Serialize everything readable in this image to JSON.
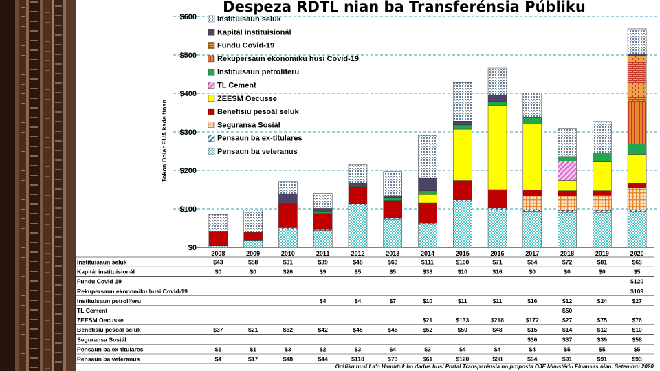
{
  "chart_data": {
    "type": "bar",
    "stacked": true,
    "title": "Despeza RDTL nian ba Transferénsia Públiku",
    "ylabel": "Tokon Dolar EUA kada tinan",
    "ylim": [
      0,
      600
    ],
    "yticks": [
      0,
      100,
      200,
      300,
      400,
      500,
      600
    ],
    "ytick_labels": [
      "$0",
      "$100",
      "$200",
      "$300",
      "$400",
      "$500",
      "$600"
    ],
    "categories": [
      "2008",
      "2009",
      "2010",
      "2011",
      "2012",
      "2013",
      "2014",
      "2015",
      "2016",
      "2017",
      "2018",
      "2019",
      "2020"
    ],
    "series": [
      {
        "key": "veteranus",
        "name": "Pensaun ba veteranus",
        "color": "#58c8c8",
        "pattern": "checker",
        "values": [
          4,
          17,
          48,
          44,
          110,
          73,
          61,
          120,
          98,
          94,
          91,
          91,
          93
        ],
        "labels": [
          "$4",
          "$17",
          "$48",
          "$44",
          "$110",
          "$73",
          "$61",
          "$120",
          "$98",
          "$94",
          "$91",
          "$91",
          "$93"
        ]
      },
      {
        "key": "extitulares",
        "name": "Pensaun ba ex-titulares",
        "color": "#2a6fb5",
        "pattern": "diag",
        "values": [
          1,
          1,
          3,
          2,
          3,
          4,
          3,
          4,
          4,
          4,
          5,
          5,
          5
        ],
        "labels": [
          "$1",
          "$1",
          "$3",
          "$2",
          "$3",
          "$4",
          "$3",
          "$4",
          "$4",
          "$4",
          "$5",
          "$5",
          "$5"
        ]
      },
      {
        "key": "seguransa",
        "name": "Seguransa Sosiál",
        "color": "#e8862a",
        "pattern": "grid",
        "values": [
          0,
          0,
          0,
          0,
          0,
          0,
          0,
          0,
          0,
          36,
          37,
          39,
          58
        ],
        "labels": [
          "",
          "",
          "",
          "",
          "",
          "",
          "",
          "",
          "",
          "$36",
          "$37",
          "$39",
          "$58"
        ]
      },
      {
        "key": "beneficiu",
        "name": "Benefísiu pesoál seluk",
        "color": "#c00000",
        "pattern": "solid",
        "values": [
          37,
          21,
          62,
          42,
          45,
          45,
          52,
          50,
          48,
          15,
          14,
          12,
          10
        ],
        "labels": [
          "$37",
          "$21",
          "$62",
          "$42",
          "$45",
          "$45",
          "$52",
          "$50",
          "$48",
          "$15",
          "$14",
          "$12",
          "$10"
        ]
      },
      {
        "key": "zeesm",
        "name": "ZEESM Oecusse",
        "color": "#ffff00",
        "pattern": "solid",
        "values": [
          0,
          0,
          0,
          0,
          0,
          0,
          21,
          133,
          218,
          172,
          27,
          75,
          76
        ],
        "labels": [
          "",
          "",
          "",
          "",
          "",
          "",
          "$21",
          "$133",
          "$218",
          "$172",
          "$27",
          "$75",
          "$76"
        ]
      },
      {
        "key": "tlcement",
        "name": "TL Cement",
        "color": "#e37ad6",
        "pattern": "diagpink",
        "values": [
          0,
          0,
          0,
          0,
          0,
          0,
          0,
          0,
          0,
          0,
          50,
          0,
          0
        ],
        "labels": [
          "",
          "",
          "",
          "",
          "",
          "",
          "",
          "",
          "",
          "",
          "$50",
          "",
          ""
        ]
      },
      {
        "key": "petroliferu",
        "name": "Instituisaun petrolíferu",
        "color": "#1fa850",
        "pattern": "solid",
        "values": [
          0,
          0,
          0,
          4,
          4,
          7,
          10,
          11,
          11,
          16,
          12,
          24,
          27
        ],
        "labels": [
          "",
          "",
          "",
          "$4",
          "$4",
          "$7",
          "$10",
          "$11",
          "$11",
          "$16",
          "$12",
          "$24",
          "$27"
        ]
      },
      {
        "key": "rekuperasaun",
        "name": "Rekupersaun ekonomiku husi Covid-19",
        "color": "#e8862a",
        "pattern": "vstripe",
        "values": [
          0,
          0,
          0,
          0,
          0,
          0,
          0,
          0,
          0,
          0,
          0,
          0,
          109
        ],
        "labels": [
          "",
          "",
          "",
          "",
          "",
          "",
          "",
          "",
          "",
          "",
          "",
          "",
          "$109"
        ]
      },
      {
        "key": "fundu",
        "name": "Fundu Covid-19",
        "color": "#e8862a",
        "pattern": "brick",
        "values": [
          0,
          0,
          0,
          0,
          0,
          0,
          0,
          0,
          0,
          0,
          0,
          0,
          120
        ],
        "labels": [
          "",
          "",
          "",
          "",
          "",
          "",
          "",
          "",
          "",
          "",
          "",
          "",
          "$120"
        ]
      },
      {
        "key": "kapital",
        "name": "Kapitál instituisionál",
        "color": "#4b4466",
        "pattern": "solid",
        "values": [
          0,
          0,
          26,
          9,
          5,
          5,
          33,
          10,
          16,
          0,
          0,
          0,
          5
        ],
        "labels": [
          "$0",
          "$0",
          "$26",
          "$9",
          "$5",
          "$5",
          "$33",
          "$10",
          "$16",
          "$0",
          "$0",
          "$0",
          "$5"
        ]
      },
      {
        "key": "seluk",
        "name": "Instituisaun seluk",
        "color": "#8fa4b8",
        "pattern": "dots",
        "values": [
          43,
          58,
          31,
          39,
          48,
          63,
          111,
          100,
          71,
          64,
          72,
          81,
          65
        ],
        "labels": [
          "$43",
          "$58",
          "$31",
          "$39",
          "$48",
          "$63",
          "$111",
          "$100",
          "$71",
          "$64",
          "$72",
          "$81",
          "$65"
        ]
      }
    ],
    "legend_order": [
      "seluk",
      "kapital",
      "fundu",
      "rekuperasaun",
      "petroliferu",
      "tlcement",
      "zeesm",
      "beneficiu",
      "seguransa",
      "extitulares",
      "veteranus"
    ],
    "table_row_order": [
      {
        "key": "seluk",
        "label": "Instituisaun seluk"
      },
      {
        "key": "kapital",
        "label": "Kapitál instituisionál"
      },
      {
        "key": "fundu",
        "label": "Fundu Covid-19"
      },
      {
        "key": "rekuperasaun",
        "label": "Rekupersaun ekonomiku husi Covid-19"
      },
      {
        "key": "petroliferu",
        "label": "Instituisaun petrolíferu"
      },
      {
        "key": "tlcement",
        "label": "TL Cement"
      },
      {
        "key": "zeesm",
        "label": "ZEESM Oecusse"
      },
      {
        "key": "beneficiu",
        "label": "Benefísiu pesoál seluk"
      },
      {
        "key": "seguransa",
        "label": "Seguransa Sosiál"
      },
      {
        "key": "extitulares",
        "label": "Pensaun ba ex-titulares"
      },
      {
        "key": "veteranus",
        "label": "Pensaun ba veteranus"
      }
    ],
    "source_note": "Gráfiku husi La'o Hamutuk ho dadus husi Portal Transparénsia no proposta OJE Ministériu Finansas nian. Setembru 2020."
  }
}
